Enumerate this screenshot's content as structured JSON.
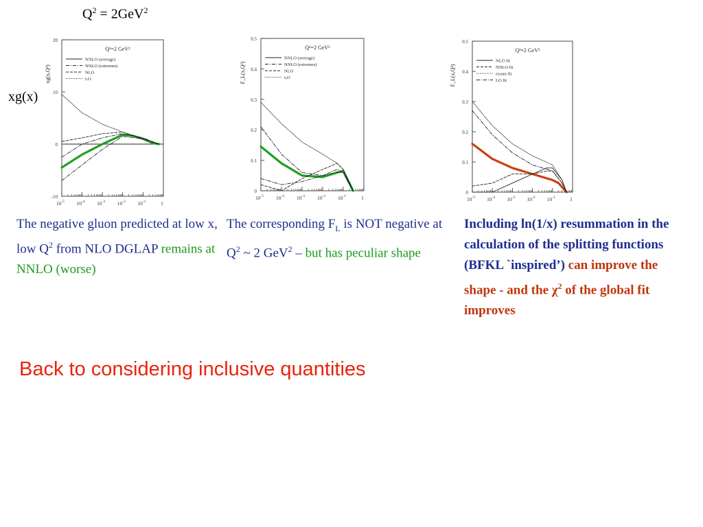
{
  "header": {
    "title_q": "Q",
    "title_sup": "2",
    "title_mid": " = 2GeV",
    "title_sup2": "2"
  },
  "side_label": "xg(x)",
  "colors": {
    "caption_blue": "#1f2e8e",
    "caption_green": "#1e9a1e",
    "caption_red": "#c0350d",
    "headline_red": "#e8230c",
    "curve_green": "#1f9f1f",
    "curve_red": "#c8400f"
  },
  "captions": {
    "c1": {
      "part1": "The negative gluon predicted at low x, low Q",
      "sup1": "2",
      "part2": " from NLO DGLAP ",
      "green": "remains at NNLO (worse)"
    },
    "c2": {
      "part1": "The corresponding F",
      "sub1": "L",
      "part2": " is NOT negative at Q",
      "sup1": "2",
      "part3": " ~ 2 GeV",
      "sup2": "2",
      "part4": " – ",
      "green": "but has peculiar shape"
    },
    "c3": {
      "blue": "Including ln(1/x) resummation in the calculation of the splitting functions (BFKL `inspired’) ",
      "red1": "can improve the shape - and the ",
      "chi": "χ",
      "sup": "2",
      "red2": " of the global fit improves"
    }
  },
  "headline": "Back to considering inclusive quantities",
  "chart_data": [
    {
      "type": "line",
      "ylabel": "xg(x,Q²)",
      "in_plot_label": "Q²=2 GeV²",
      "x_scale": "log",
      "xlim": [
        1e-05,
        1
      ],
      "ylim": [
        -10,
        20
      ],
      "x_ticks": [
        {
          "base": "10",
          "exp": "-5"
        },
        {
          "base": "10",
          "exp": "-4"
        },
        {
          "base": "10",
          "exp": "-3"
        },
        {
          "base": "10",
          "exp": "-2"
        },
        {
          "base": "10",
          "exp": "-1"
        },
        {
          "base": "1",
          "exp": ""
        }
      ],
      "y_ticks": [
        "-10",
        "0",
        "10",
        "20"
      ],
      "y_tick_values": [
        -10,
        0,
        10,
        20
      ],
      "legend": [
        "NNLO (average)",
        "NNLO (extremes)",
        "NLO",
        "LO"
      ],
      "series": [
        {
          "name": "NNLO (average)",
          "style": "thick-green",
          "x": [
            1e-05,
            0.0001,
            0.001,
            0.01,
            0.03,
            0.1,
            0.3,
            0.6
          ],
          "y": [
            -4.5,
            -2,
            0,
            1.8,
            1.6,
            1,
            0.2,
            0
          ]
        },
        {
          "name": "NNLO (extremes)",
          "style": "dashdot",
          "x": [
            1e-05,
            0.0001,
            0.001,
            0.01,
            0.1,
            0.6
          ],
          "y": [
            -7,
            -4,
            -1,
            1.5,
            1,
            0
          ]
        },
        {
          "name": "NNLO (extremes)",
          "style": "dashdot",
          "x": [
            1e-05,
            0.0001,
            0.001,
            0.01,
            0.1,
            0.6
          ],
          "y": [
            -2.5,
            0,
            1.2,
            2,
            1.2,
            0
          ]
        },
        {
          "name": "NLO",
          "style": "dashed",
          "x": [
            1e-05,
            0.0001,
            0.001,
            0.01,
            0.1,
            0.6
          ],
          "y": [
            0.5,
            1.2,
            2,
            2.3,
            1,
            0
          ]
        },
        {
          "name": "LO",
          "style": "dotted",
          "x": [
            1e-05,
            0.0001,
            0.001,
            0.01,
            0.1,
            0.6
          ],
          "y": [
            9.5,
            6,
            3.8,
            2.3,
            1,
            0
          ]
        }
      ]
    },
    {
      "type": "line",
      "ylabel": "F_L(x,Q²)",
      "in_plot_label": "Q²=2 GeV²",
      "x_scale": "log",
      "xlim": [
        1e-05,
        1
      ],
      "ylim": [
        0,
        0.5
      ],
      "x_ticks": [
        {
          "base": "10",
          "exp": "-5"
        },
        {
          "base": "10",
          "exp": "-4"
        },
        {
          "base": "10",
          "exp": "-3"
        },
        {
          "base": "10",
          "exp": "-2"
        },
        {
          "base": "10",
          "exp": "-1"
        },
        {
          "base": "1",
          "exp": ""
        }
      ],
      "y_ticks": [
        "0",
        "0.1",
        "0.2",
        "0.3",
        "0.4",
        "0.5"
      ],
      "y_tick_values": [
        0,
        0.1,
        0.2,
        0.3,
        0.4,
        0.5
      ],
      "legend": [
        "NNLO (average)",
        "NNLO (extremes)",
        "NLO",
        "LO"
      ],
      "series": [
        {
          "name": "NNLO (average)",
          "style": "thick-green",
          "x": [
            1e-05,
            0.0001,
            0.001,
            0.01,
            0.05,
            0.1,
            0.3
          ],
          "y": [
            0.145,
            0.09,
            0.05,
            0.045,
            0.06,
            0.065,
            0.0
          ]
        },
        {
          "name": "NNLO (extremes)",
          "style": "dashdot",
          "x": [
            1e-05,
            0.0001,
            0.001,
            0.01,
            0.05,
            0.1,
            0.3
          ],
          "y": [
            0.21,
            0.12,
            0.06,
            0.05,
            0.06,
            0.06,
            0.0
          ]
        },
        {
          "name": "NNLO (extremes)",
          "style": "dashdot",
          "x": [
            1e-05,
            0.0001,
            0.001,
            0.01,
            0.05,
            0.1,
            0.3
          ],
          "y": [
            0.04,
            0.02,
            0.03,
            0.05,
            0.07,
            0.06,
            0.0
          ]
        },
        {
          "name": "NLO",
          "style": "dashed",
          "x": [
            1e-05,
            0.0001,
            0.001,
            0.01,
            0.05,
            0.1,
            0.3
          ],
          "y": [
            0.02,
            0.0,
            0.04,
            0.07,
            0.09,
            0.07,
            0.0
          ]
        },
        {
          "name": "LO",
          "style": "dotted",
          "x": [
            1e-05,
            0.0001,
            0.001,
            0.01,
            0.05,
            0.1,
            0.3
          ],
          "y": [
            0.29,
            0.22,
            0.16,
            0.12,
            0.09,
            0.07,
            0.0
          ]
        }
      ]
    },
    {
      "type": "line",
      "ylabel": "F_L(x,Q²)",
      "in_plot_label": "Q²=2 GeV²",
      "x_scale": "log",
      "xlim": [
        1e-05,
        1
      ],
      "ylim": [
        0,
        0.5
      ],
      "x_ticks": [
        {
          "base": "10",
          "exp": "-5"
        },
        {
          "base": "10",
          "exp": "-4"
        },
        {
          "base": "10",
          "exp": "-3"
        },
        {
          "base": "10",
          "exp": "-2"
        },
        {
          "base": "10",
          "exp": "-1"
        },
        {
          "base": "1",
          "exp": ""
        }
      ],
      "y_ticks": [
        "0",
        "0.1",
        "0.2",
        "0.3",
        "0.4",
        "0.5"
      ],
      "y_tick_values": [
        0,
        0.1,
        0.2,
        0.3,
        0.4,
        0.5
      ],
      "legend": [
        "NLO fit",
        "NNLO fit",
        "resum fit",
        "LO fit"
      ],
      "series": [
        {
          "name": "resum fit",
          "style": "thick-red",
          "x": [
            1e-05,
            0.0001,
            0.001,
            0.01,
            0.1,
            0.2,
            0.5
          ],
          "y": [
            0.16,
            0.11,
            0.08,
            0.06,
            0.04,
            0.03,
            0.0
          ]
        },
        {
          "name": "NLO fit",
          "style": "solid",
          "x": [
            1e-05,
            0.0001,
            0.001,
            0.01,
            0.05,
            0.1,
            0.3,
            0.5
          ],
          "y": [
            0.0,
            0.0,
            0.03,
            0.06,
            0.08,
            0.08,
            0.04,
            0.0
          ]
        },
        {
          "name": "NNLO fit",
          "style": "dashed",
          "x": [
            1e-05,
            0.0001,
            0.001,
            0.01,
            0.05,
            0.1,
            0.3,
            0.5
          ],
          "y": [
            0.02,
            0.03,
            0.06,
            0.06,
            0.07,
            0.07,
            0.03,
            0.0
          ]
        },
        {
          "name": "LO fit",
          "style": "dashdot",
          "x": [
            1e-05,
            0.0001,
            0.001,
            0.01,
            0.1,
            0.3,
            0.5
          ],
          "y": [
            0.27,
            0.19,
            0.13,
            0.09,
            0.07,
            0.03,
            0.0
          ]
        },
        {
          "name": "LO fit",
          "style": "dotted",
          "x": [
            1e-05,
            0.0001,
            0.001,
            0.01,
            0.1,
            0.3,
            0.5
          ],
          "y": [
            0.3,
            0.22,
            0.16,
            0.12,
            0.09,
            0.04,
            0.0
          ]
        }
      ]
    }
  ]
}
